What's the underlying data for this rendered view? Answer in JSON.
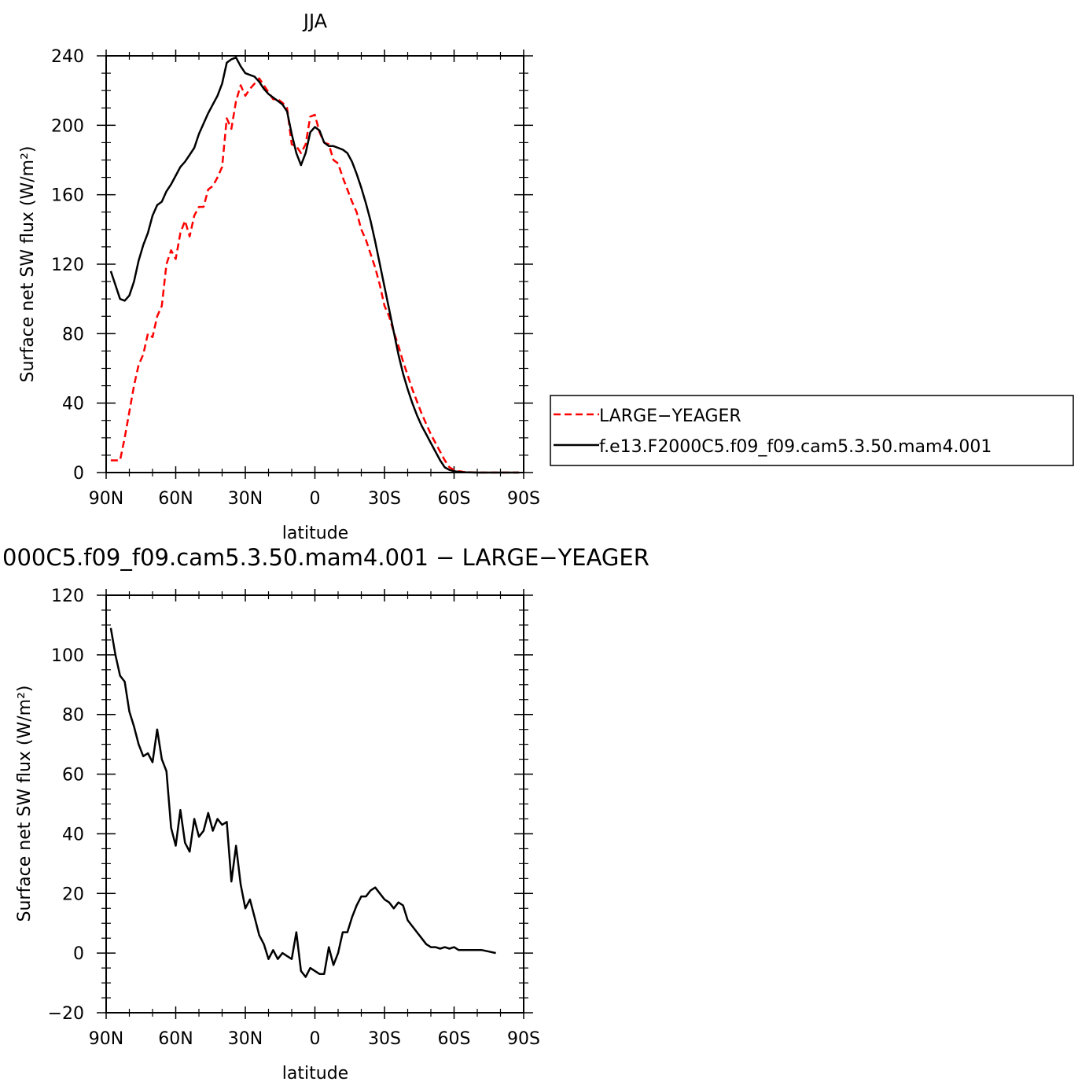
{
  "chart_data": [
    {
      "type": "line",
      "title": "JJA",
      "xlabel": "latitude",
      "ylabel": "Surface net SW flux (W/m²)",
      "x_units": "degrees latitude (positive = N)",
      "xlim": [
        90,
        -90
      ],
      "ylim": [
        0,
        240
      ],
      "xticks": [
        {
          "value": 90,
          "label": "90N"
        },
        {
          "value": 60,
          "label": "60N"
        },
        {
          "value": 30,
          "label": "30N"
        },
        {
          "value": 0,
          "label": "0"
        },
        {
          "value": -30,
          "label": "30S"
        },
        {
          "value": -60,
          "label": "60S"
        },
        {
          "value": -90,
          "label": "90S"
        }
      ],
      "yticks": [
        0,
        40,
        80,
        120,
        160,
        200,
        240
      ],
      "grid": false,
      "legend": "right",
      "series": [
        {
          "name": "LARGE−YEAGER",
          "color": "#ff0000",
          "dash": "dashed",
          "x": [
            88,
            86,
            84,
            82,
            80,
            78,
            76,
            74,
            72,
            70,
            68,
            66,
            64,
            62,
            60,
            58,
            56,
            54,
            52,
            50,
            48,
            46,
            44,
            42,
            40,
            38,
            36,
            34,
            32,
            30,
            28,
            26,
            24,
            22,
            20,
            18,
            16,
            14,
            12,
            10,
            8,
            6,
            4,
            2,
            0,
            -2,
            -4,
            -6,
            -8,
            -10,
            -12,
            -14,
            -16,
            -18,
            -20,
            -22,
            -24,
            -26,
            -28,
            -30,
            -32,
            -34,
            -36,
            -38,
            -40,
            -42,
            -44,
            -46,
            -48,
            -50,
            -52,
            -54,
            -56,
            -58,
            -60,
            -62,
            -64,
            -66,
            -68,
            -70,
            -72,
            -75,
            -80,
            -85,
            -88
          ],
          "y": [
            7,
            7,
            7,
            20,
            35,
            50,
            62,
            68,
            80,
            78,
            90,
            96,
            120,
            128,
            123,
            138,
            145,
            136,
            148,
            153,
            153,
            163,
            165,
            170,
            176,
            204,
            198,
            214,
            223,
            217,
            221,
            224,
            227,
            223,
            219,
            215,
            215,
            213,
            210,
            189,
            188,
            184,
            189,
            205,
            206,
            196,
            190,
            189,
            180,
            178,
            170,
            163,
            156,
            150,
            140,
            134,
            126,
            118,
            108,
            96,
            90,
            81,
            73,
            64,
            56,
            48,
            41,
            34,
            28,
            22,
            17,
            12,
            7,
            3,
            1.5,
            0.8,
            0.4,
            0.2,
            0.1,
            0.05,
            0,
            0,
            0,
            0,
            0
          ]
        },
        {
          "name": "f.e13.F2000C5.f09_f09.cam5.3.50.mam4.001",
          "color": "#000000",
          "dash": "solid",
          "x": [
            88,
            86,
            84,
            82,
            80,
            78,
            76,
            74,
            72,
            70,
            68,
            66,
            64,
            62,
            60,
            58,
            56,
            54,
            52,
            50,
            48,
            46,
            44,
            42,
            40,
            38,
            36,
            34,
            32,
            30,
            28,
            26,
            24,
            22,
            20,
            18,
            16,
            14,
            12,
            10,
            8,
            6,
            4,
            2,
            0,
            -2,
            -4,
            -6,
            -8,
            -10,
            -12,
            -14,
            -16,
            -18,
            -20,
            -22,
            -24,
            -26,
            -28,
            -30,
            -32,
            -34,
            -36,
            -38,
            -40,
            -42,
            -44,
            -46,
            -48,
            -50,
            -52,
            -54,
            -56,
            -58,
            -60,
            -62,
            -64,
            -66,
            -68,
            -70,
            -72,
            -75,
            -80,
            -85,
            -88
          ],
          "y": [
            116,
            108,
            100,
            99,
            102,
            110,
            122,
            131,
            138,
            148,
            154,
            156,
            162,
            166,
            171,
            176,
            179,
            183,
            187,
            195,
            201,
            207,
            212,
            217,
            224,
            236,
            238,
            239,
            234,
            230,
            229,
            228,
            225,
            221,
            218,
            216,
            214,
            212,
            208,
            195,
            184,
            177,
            184,
            196,
            199,
            197,
            190,
            188,
            188,
            187,
            186,
            184,
            179,
            172,
            164,
            155,
            145,
            133,
            120,
            107,
            94,
            81,
            68,
            57,
            48,
            40,
            33,
            27,
            22,
            17,
            12,
            7,
            3,
            1.5,
            0.8,
            0.4,
            0.2,
            0.1,
            0.05,
            0,
            0,
            0,
            0,
            0,
            0
          ]
        }
      ]
    },
    {
      "type": "line",
      "title": "000C5.f09_f09.cam5.3.50.mam4.001 − LARGE−YEAGER",
      "xlabel": "latitude",
      "ylabel": "Surface net SW flux (W/m²)",
      "x_units": "degrees latitude (positive = N)",
      "xlim": [
        90,
        -90
      ],
      "ylim": [
        -20,
        120
      ],
      "xticks": [
        {
          "value": 90,
          "label": "90N"
        },
        {
          "value": 60,
          "label": "60N"
        },
        {
          "value": 30,
          "label": "30N"
        },
        {
          "value": 0,
          "label": "0"
        },
        {
          "value": -30,
          "label": "30S"
        },
        {
          "value": -60,
          "label": "60S"
        },
        {
          "value": -90,
          "label": "90S"
        }
      ],
      "yticks": [
        -20,
        0,
        20,
        40,
        60,
        80,
        100,
        120
      ],
      "grid": false,
      "series": [
        {
          "color": "#000000",
          "dash": "solid",
          "x": [
            88,
            86,
            84,
            82,
            80,
            78,
            76,
            74,
            72,
            70,
            68,
            66,
            64,
            62,
            60,
            58,
            56,
            54,
            52,
            50,
            48,
            46,
            44,
            42,
            40,
            38,
            36,
            34,
            32,
            30,
            28,
            26,
            24,
            22,
            20,
            18,
            16,
            14,
            12,
            10,
            8,
            6,
            4,
            2,
            0,
            -2,
            -4,
            -6,
            -8,
            -10,
            -12,
            -14,
            -16,
            -18,
            -20,
            -22,
            -24,
            -26,
            -28,
            -30,
            -32,
            -34,
            -36,
            -38,
            -40,
            -42,
            -44,
            -46,
            -48,
            -50,
            -52,
            -54,
            -56,
            -58,
            -60,
            -62,
            -64,
            -66,
            -68,
            -70,
            -72,
            -75,
            -78
          ],
          "y": [
            109,
            100,
            93,
            91,
            81,
            76,
            70,
            66,
            67,
            64,
            75,
            65,
            61,
            42,
            36,
            48,
            37,
            34,
            45,
            39,
            41,
            47,
            41,
            45,
            43,
            44,
            24,
            36,
            23,
            15,
            18,
            12,
            6,
            3,
            -2,
            1,
            -2,
            0,
            -1,
            -2,
            7,
            -6,
            -8,
            -5,
            -6,
            -7,
            -7,
            2,
            -4,
            0,
            7,
            7,
            12,
            16,
            19,
            19,
            21,
            22,
            20,
            18,
            17,
            15,
            17,
            16,
            11,
            9,
            7,
            5,
            3,
            2,
            2,
            1.5,
            2,
            1.5,
            2,
            1,
            1,
            1,
            1,
            1,
            1,
            0.5,
            0
          ]
        }
      ]
    }
  ]
}
